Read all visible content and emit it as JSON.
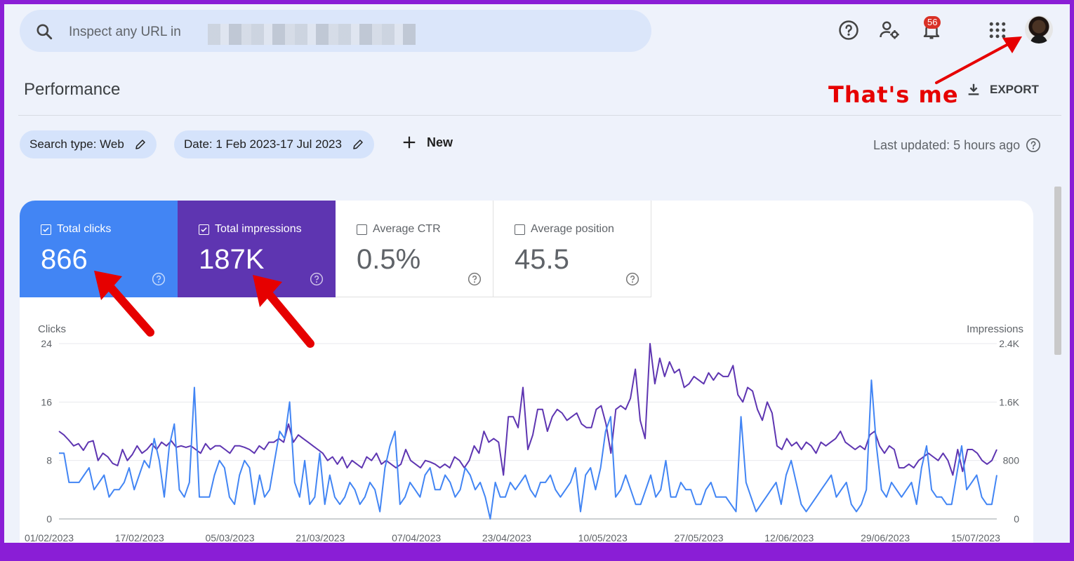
{
  "search": {
    "placeholder": "Inspect any URL in"
  },
  "toolbar": {
    "notification_count": "56"
  },
  "page": {
    "title": "Performance",
    "export_label": "EXPORT"
  },
  "annotations": {
    "avatar_note": "That's me"
  },
  "filters": {
    "search_type": "Search type: Web",
    "date": "Date: 1 Feb 2023-17 Jul 2023",
    "new_label": "New",
    "last_updated": "Last updated: 5 hours ago"
  },
  "metrics": [
    {
      "label": "Total clicks",
      "value": "866",
      "checked": true,
      "color": "#4285f4"
    },
    {
      "label": "Total impressions",
      "value": "187K",
      "checked": true,
      "color": "#5e35b1"
    },
    {
      "label": "Average CTR",
      "value": "0.5%",
      "checked": false
    },
    {
      "label": "Average position",
      "value": "45.5",
      "checked": false
    }
  ],
  "chart_data": {
    "type": "line",
    "ylabel_left": "Clicks",
    "ylabel_right": "Impressions",
    "yticks_left": [
      "24",
      "16",
      "8",
      "0"
    ],
    "yticks_right": [
      "2.4K",
      "1.6K",
      "800",
      "0"
    ],
    "ylim_left": [
      0,
      24
    ],
    "ylim_right": [
      0,
      2400
    ],
    "xticks": [
      "01/02/2023",
      "17/02/2023",
      "05/03/2023",
      "21/03/2023",
      "07/04/2023",
      "23/04/2023",
      "10/05/2023",
      "27/05/2023",
      "12/06/2023",
      "29/06/2023",
      "15/07/2023"
    ],
    "x_start": "2023-02-01",
    "x_end": "2023-07-17",
    "grid": true,
    "series": [
      {
        "name": "Clicks",
        "color": "#4285f4",
        "axis": "left",
        "values": [
          9,
          9,
          5,
          5,
          5,
          6,
          7,
          4,
          5,
          6,
          3,
          4,
          4,
          5,
          7,
          4,
          6,
          8,
          7,
          11,
          8,
          3,
          10,
          13,
          4,
          3,
          5,
          18,
          3,
          3,
          3,
          6,
          8,
          7,
          3,
          2,
          6,
          8,
          7,
          2,
          6,
          3,
          4,
          8,
          12,
          11,
          16,
          5,
          3,
          8,
          2,
          3,
          9,
          2,
          6,
          3,
          2,
          3,
          5,
          4,
          2,
          3,
          5,
          4,
          1,
          7,
          10,
          12,
          2,
          3,
          5,
          4,
          3,
          6,
          7,
          4,
          4,
          6,
          5,
          3,
          4,
          7,
          6,
          4,
          5,
          3,
          0,
          5,
          3,
          3,
          5,
          4,
          5,
          6,
          4,
          3,
          5,
          5,
          6,
          4,
          3,
          4,
          5,
          7,
          1,
          6,
          7,
          4,
          7,
          12,
          14,
          3,
          4,
          6,
          4,
          2,
          2,
          4,
          6,
          3,
          4,
          8,
          3,
          3,
          5,
          4,
          4,
          2,
          2,
          4,
          5,
          3,
          3,
          3,
          2,
          1,
          14,
          5,
          3,
          1,
          2,
          3,
          4,
          5,
          2,
          6,
          8,
          5,
          2,
          1,
          2,
          3,
          4,
          5,
          6,
          3,
          4,
          5,
          2,
          1,
          2,
          4,
          19,
          10,
          4,
          3,
          5,
          4,
          3,
          4,
          5,
          2,
          7,
          10,
          4,
          3,
          3,
          2,
          2,
          6,
          10,
          4,
          5,
          6,
          3,
          2,
          2,
          6
        ]
      },
      {
        "name": "Impressions",
        "color": "#5e35b1",
        "axis": "right",
        "values": [
          1200,
          1150,
          1080,
          1000,
          1030,
          940,
          1050,
          1070,
          800,
          900,
          850,
          760,
          730,
          950,
          800,
          880,
          1000,
          900,
          950,
          1030,
          950,
          1050,
          1000,
          1070,
          980,
          1000,
          980,
          1000,
          950,
          900,
          1030,
          950,
          1000,
          1000,
          950,
          900,
          1000,
          1000,
          980,
          950,
          900,
          1000,
          950,
          1050,
          1050,
          1100,
          1050,
          1300,
          1050,
          1150,
          1100,
          1050,
          1000,
          950,
          900,
          800,
          850,
          750,
          850,
          700,
          800,
          750,
          700,
          850,
          800,
          900,
          750,
          800,
          750,
          700,
          750,
          950,
          800,
          750,
          700,
          800,
          780,
          750,
          700,
          750,
          700,
          850,
          800,
          700,
          800,
          1000,
          900,
          1200,
          1050,
          1100,
          1050,
          600,
          1400,
          1400,
          1250,
          1800,
          950,
          1150,
          1500,
          1500,
          1200,
          1400,
          1500,
          1450,
          1350,
          1400,
          1450,
          1300,
          1250,
          1250,
          1500,
          1550,
          1300,
          900,
          1500,
          1550,
          1500,
          1650,
          2050,
          1350,
          1100,
          2400,
          1850,
          2200,
          1950,
          2150,
          2000,
          2050,
          1800,
          1850,
          1950,
          1900,
          1850,
          2000,
          1900,
          2000,
          1950,
          1950,
          2100,
          1700,
          1600,
          1800,
          1750,
          1500,
          1350,
          1600,
          1450,
          1000,
          950,
          1100,
          1000,
          1050,
          950,
          1050,
          1000,
          900,
          1050,
          1000,
          1050,
          1100,
          1200,
          1050,
          1000,
          950,
          1000,
          950,
          1150,
          1200,
          1000,
          900,
          1000,
          950,
          700,
          700,
          750,
          700,
          800,
          850,
          900,
          850,
          800,
          900,
          800,
          600,
          950,
          650,
          950,
          950,
          900,
          800,
          750,
          800,
          950
        ]
      }
    ]
  }
}
